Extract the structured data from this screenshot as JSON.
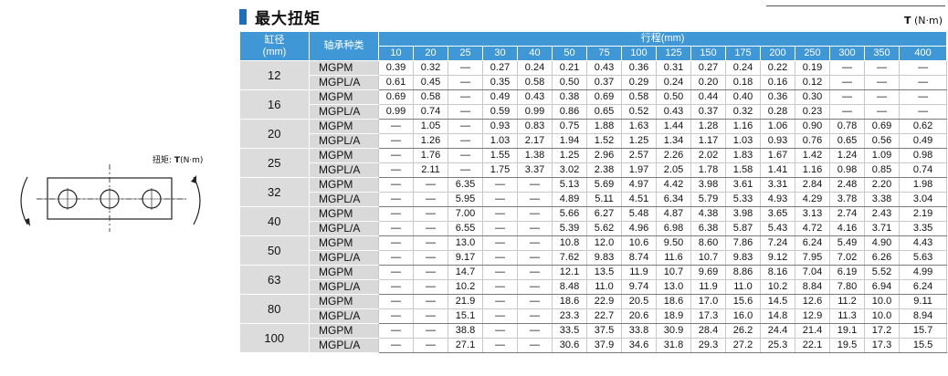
{
  "section": {
    "title": "最大扭矩",
    "unit_symbol": "T",
    "unit_text": "(N·m)"
  },
  "table": {
    "bore_header": "缸径",
    "bore_unit": "(mm)",
    "bearing_header": "轴承种类",
    "stroke_header": "行程(mm)",
    "strokes": [
      "10",
      "20",
      "25",
      "30",
      "40",
      "50",
      "75",
      "100",
      "125",
      "150",
      "175",
      "200",
      "250",
      "300",
      "350",
      "400"
    ],
    "groups": [
      {
        "bore": "12",
        "rows": [
          {
            "bearing": "MGPM",
            "values": [
              "0.39",
              "0.32",
              "—",
              "0.27",
              "0.24",
              "0.21",
              "0.43",
              "0.36",
              "0.31",
              "0.27",
              "0.24",
              "0.22",
              "0.19",
              "—",
              "—",
              "—"
            ]
          },
          {
            "bearing": "MGPL/A",
            "values": [
              "0.61",
              "0.45",
              "—",
              "0.35",
              "0.58",
              "0.50",
              "0.37",
              "0.29",
              "0.24",
              "0.20",
              "0.18",
              "0.16",
              "0.12",
              "—",
              "—",
              "—"
            ]
          }
        ]
      },
      {
        "bore": "16",
        "rows": [
          {
            "bearing": "MGPM",
            "values": [
              "0.69",
              "0.58",
              "—",
              "0.49",
              "0.43",
              "0.38",
              "0.69",
              "0.58",
              "0.50",
              "0.44",
              "0.40",
              "0.36",
              "0.30",
              "—",
              "—",
              "—"
            ]
          },
          {
            "bearing": "MGPL/A",
            "values": [
              "0.99",
              "0.74",
              "—",
              "0.59",
              "0.99",
              "0.86",
              "0.65",
              "0.52",
              "0.43",
              "0.37",
              "0.32",
              "0.28",
              "0.23",
              "—",
              "—",
              "—"
            ]
          }
        ]
      },
      {
        "bore": "20",
        "rows": [
          {
            "bearing": "MGPM",
            "values": [
              "—",
              "1.05",
              "—",
              "0.93",
              "0.83",
              "0.75",
              "1.88",
              "1.63",
              "1.44",
              "1.28",
              "1.16",
              "1.06",
              "0.90",
              "0.78",
              "0.69",
              "0.62"
            ]
          },
          {
            "bearing": "MGPL/A",
            "values": [
              "—",
              "1.26",
              "—",
              "1.03",
              "2.17",
              "1.94",
              "1.52",
              "1.25",
              "1.34",
              "1.17",
              "1.03",
              "0.93",
              "0.76",
              "0.65",
              "0.56",
              "0.49"
            ]
          }
        ]
      },
      {
        "bore": "25",
        "rows": [
          {
            "bearing": "MGPM",
            "values": [
              "—",
              "1.76",
              "—",
              "1.55",
              "1.38",
              "1.25",
              "2.96",
              "2.57",
              "2.26",
              "2.02",
              "1.83",
              "1.67",
              "1.42",
              "1.24",
              "1.09",
              "0.98"
            ]
          },
          {
            "bearing": "MGPL/A",
            "values": [
              "—",
              "2.11",
              "—",
              "1.75",
              "3.37",
              "3.02",
              "2.38",
              "1.97",
              "2.05",
              "1.78",
              "1.58",
              "1.41",
              "1.16",
              "0.98",
              "0.85",
              "0.74"
            ]
          }
        ]
      },
      {
        "bore": "32",
        "rows": [
          {
            "bearing": "MGPM",
            "values": [
              "—",
              "—",
              "6.35",
              "—",
              "—",
              "5.13",
              "5.69",
              "4.97",
              "4.42",
              "3.98",
              "3.61",
              "3.31",
              "2.84",
              "2.48",
              "2.20",
              "1.98"
            ]
          },
          {
            "bearing": "MGPL/A",
            "values": [
              "—",
              "—",
              "5.95",
              "—",
              "—",
              "4.89",
              "5.11",
              "4.51",
              "6.34",
              "5.79",
              "5.33",
              "4.93",
              "4.29",
              "3.78",
              "3.38",
              "3.04"
            ]
          }
        ]
      },
      {
        "bore": "40",
        "rows": [
          {
            "bearing": "MGPM",
            "values": [
              "—",
              "—",
              "7.00",
              "—",
              "—",
              "5.66",
              "6.27",
              "5.48",
              "4.87",
              "4.38",
              "3.98",
              "3.65",
              "3.13",
              "2.74",
              "2.43",
              "2.19"
            ]
          },
          {
            "bearing": "MGPL/A",
            "values": [
              "—",
              "—",
              "6.55",
              "—",
              "—",
              "5.39",
              "5.62",
              "4.96",
              "6.98",
              "6.38",
              "5.87",
              "5.43",
              "4.72",
              "4.16",
              "3.71",
              "3.35"
            ]
          }
        ]
      },
      {
        "bore": "50",
        "rows": [
          {
            "bearing": "MGPM",
            "values": [
              "—",
              "—",
              "13.0",
              "—",
              "—",
              "10.8",
              "12.0",
              "10.6",
              "9.50",
              "8.60",
              "7.86",
              "7.24",
              "6.24",
              "5.49",
              "4.90",
              "4.43"
            ]
          },
          {
            "bearing": "MGPL/A",
            "values": [
              "—",
              "—",
              "9.17",
              "—",
              "—",
              "7.62",
              "9.83",
              "8.74",
              "11.6",
              "10.7",
              "9.83",
              "9.12",
              "7.95",
              "7.02",
              "6.26",
              "5.63"
            ]
          }
        ]
      },
      {
        "bore": "63",
        "rows": [
          {
            "bearing": "MGPM",
            "values": [
              "—",
              "—",
              "14.7",
              "—",
              "—",
              "12.1",
              "13.5",
              "11.9",
              "10.7",
              "9.69",
              "8.86",
              "8.16",
              "7.04",
              "6.19",
              "5.52",
              "4.99"
            ]
          },
          {
            "bearing": "MGPL/A",
            "values": [
              "—",
              "—",
              "10.2",
              "—",
              "—",
              "8.48",
              "11.0",
              "9.74",
              "13.0",
              "11.9",
              "11.0",
              "10.2",
              "8.84",
              "7.80",
              "6.94",
              "6.24"
            ]
          }
        ]
      },
      {
        "bore": "80",
        "rows": [
          {
            "bearing": "MGPM",
            "values": [
              "—",
              "—",
              "21.9",
              "—",
              "—",
              "18.6",
              "22.9",
              "20.5",
              "18.6",
              "17.0",
              "15.6",
              "14.5",
              "12.6",
              "11.2",
              "10.0",
              "9.11"
            ]
          },
          {
            "bearing": "MGPL/A",
            "values": [
              "—",
              "—",
              "15.1",
              "—",
              "—",
              "23.3",
              "22.7",
              "20.6",
              "18.9",
              "17.3",
              "16.0",
              "14.8",
              "12.9",
              "11.3",
              "10.0",
              "8.94"
            ]
          }
        ]
      },
      {
        "bore": "100",
        "rows": [
          {
            "bearing": "MGPM",
            "values": [
              "—",
              "—",
              "38.8",
              "—",
              "—",
              "33.5",
              "37.5",
              "33.8",
              "30.9",
              "28.4",
              "26.2",
              "24.4",
              "21.4",
              "19.1",
              "17.2",
              "15.7"
            ]
          },
          {
            "bearing": "MGPL/A",
            "values": [
              "—",
              "—",
              "27.1",
              "—",
              "—",
              "30.6",
              "37.9",
              "34.6",
              "31.8",
              "29.3",
              "27.2",
              "25.3",
              "22.1",
              "19.5",
              "17.3",
              "15.5"
            ]
          }
        ]
      }
    ]
  },
  "diagram": {
    "label_prefix": "扭矩:",
    "label_symbol": "T",
    "label_unit": "(N·m)"
  }
}
